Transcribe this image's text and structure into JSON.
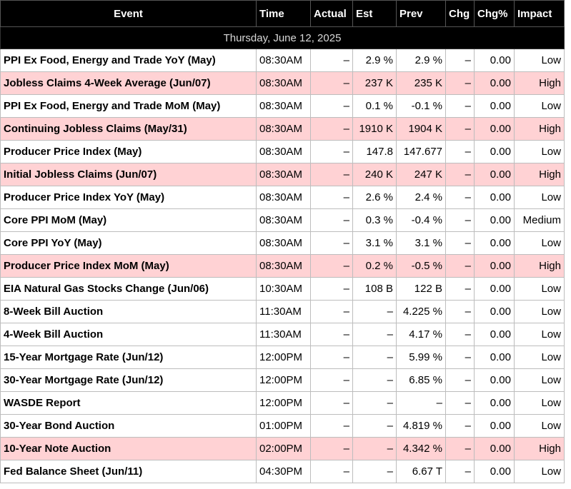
{
  "headers": {
    "event": "Event",
    "time": "Time",
    "actual": "Actual",
    "est": "Est",
    "prev": "Prev",
    "chg": "Chg",
    "chg_pct": "Chg%",
    "impact": "Impact"
  },
  "date_label": "Thursday, June 12, 2025",
  "colors": {
    "header_bg": "#000000",
    "high_impact_row": "#ffd2d4"
  },
  "rows": [
    {
      "event": "PPI Ex Food, Energy and Trade YoY (May)",
      "time": "08:30AM",
      "actual": "–",
      "est": "2.9 %",
      "prev": "2.9 %",
      "chg": "–",
      "chg_pct": "0.00",
      "impact": "Low",
      "highlight": false
    },
    {
      "event": "Jobless Claims 4-Week Average (Jun/07)",
      "time": "08:30AM",
      "actual": "–",
      "est": "237 K",
      "prev": "235 K",
      "chg": "–",
      "chg_pct": "0.00",
      "impact": "High",
      "highlight": true
    },
    {
      "event": "PPI Ex Food, Energy and Trade MoM (May)",
      "time": "08:30AM",
      "actual": "–",
      "est": "0.1 %",
      "prev": "-0.1 %",
      "chg": "–",
      "chg_pct": "0.00",
      "impact": "Low",
      "highlight": false
    },
    {
      "event": "Continuing Jobless Claims (May/31)",
      "time": "08:30AM",
      "actual": "–",
      "est": "1910 K",
      "prev": "1904 K",
      "chg": "–",
      "chg_pct": "0.00",
      "impact": "High",
      "highlight": true
    },
    {
      "event": "Producer Price Index (May)",
      "time": "08:30AM",
      "actual": "–",
      "est": "147.8",
      "prev": "147.677",
      "chg": "–",
      "chg_pct": "0.00",
      "impact": "Low",
      "highlight": false
    },
    {
      "event": "Initial Jobless Claims (Jun/07)",
      "time": "08:30AM",
      "actual": "–",
      "est": "240 K",
      "prev": "247 K",
      "chg": "–",
      "chg_pct": "0.00",
      "impact": "High",
      "highlight": true
    },
    {
      "event": "Producer Price Index YoY (May)",
      "time": "08:30AM",
      "actual": "–",
      "est": "2.6 %",
      "prev": "2.4 %",
      "chg": "–",
      "chg_pct": "0.00",
      "impact": "Low",
      "highlight": false
    },
    {
      "event": "Core PPI MoM (May)",
      "time": "08:30AM",
      "actual": "–",
      "est": "0.3 %",
      "prev": "-0.4 %",
      "chg": "–",
      "chg_pct": "0.00",
      "impact": "Medium",
      "highlight": false
    },
    {
      "event": "Core PPI YoY (May)",
      "time": "08:30AM",
      "actual": "–",
      "est": "3.1 %",
      "prev": "3.1 %",
      "chg": "–",
      "chg_pct": "0.00",
      "impact": "Low",
      "highlight": false
    },
    {
      "event": "Producer Price Index MoM (May)",
      "time": "08:30AM",
      "actual": "–",
      "est": "0.2 %",
      "prev": "-0.5 %",
      "chg": "–",
      "chg_pct": "0.00",
      "impact": "High",
      "highlight": true
    },
    {
      "event": "EIA Natural Gas Stocks Change (Jun/06)",
      "time": "10:30AM",
      "actual": "–",
      "est": "108 B",
      "prev": "122 B",
      "chg": "–",
      "chg_pct": "0.00",
      "impact": "Low",
      "highlight": false
    },
    {
      "event": "8-Week Bill Auction",
      "time": "11:30AM",
      "actual": "–",
      "est": "–",
      "prev": "4.225 %",
      "chg": "–",
      "chg_pct": "0.00",
      "impact": "Low",
      "highlight": false
    },
    {
      "event": "4-Week Bill Auction",
      "time": "11:30AM",
      "actual": "–",
      "est": "–",
      "prev": "4.17 %",
      "chg": "–",
      "chg_pct": "0.00",
      "impact": "Low",
      "highlight": false
    },
    {
      "event": "15-Year Mortgage Rate (Jun/12)",
      "time": "12:00PM",
      "actual": "–",
      "est": "–",
      "prev": "5.99 %",
      "chg": "–",
      "chg_pct": "0.00",
      "impact": "Low",
      "highlight": false
    },
    {
      "event": "30-Year Mortgage Rate (Jun/12)",
      "time": "12:00PM",
      "actual": "–",
      "est": "–",
      "prev": "6.85 %",
      "chg": "–",
      "chg_pct": "0.00",
      "impact": "Low",
      "highlight": false
    },
    {
      "event": "WASDE Report",
      "time": "12:00PM",
      "actual": "–",
      "est": "–",
      "prev": "–",
      "chg": "–",
      "chg_pct": "0.00",
      "impact": "Low",
      "highlight": false
    },
    {
      "event": "30-Year Bond Auction",
      "time": "01:00PM",
      "actual": "–",
      "est": "–",
      "prev": "4.819 %",
      "chg": "–",
      "chg_pct": "0.00",
      "impact": "Low",
      "highlight": false
    },
    {
      "event": "10-Year Note Auction",
      "time": "02:00PM",
      "actual": "–",
      "est": "–",
      "prev": "4.342 %",
      "chg": "–",
      "chg_pct": "0.00",
      "impact": "High",
      "highlight": true
    },
    {
      "event": "Fed Balance Sheet (Jun/11)",
      "time": "04:30PM",
      "actual": "–",
      "est": "–",
      "prev": "6.67 T",
      "chg": "–",
      "chg_pct": "0.00",
      "impact": "Low",
      "highlight": false
    }
  ]
}
